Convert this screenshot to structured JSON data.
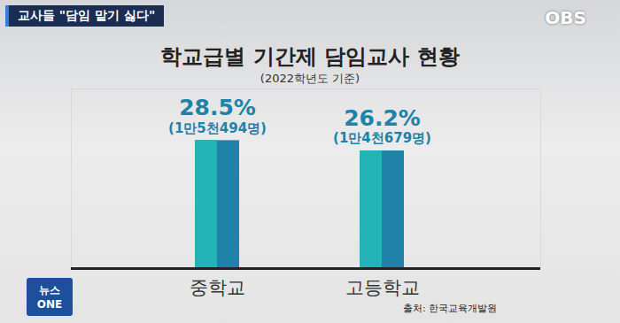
{
  "chart_data": {
    "type": "bar",
    "title": "학교급별 기간제 담임교사 현황",
    "subtitle": "(2022학년도 기준)",
    "categories": [
      "중학교",
      "고등학교"
    ],
    "values": [
      28.5,
      26.2
    ],
    "value_labels": [
      "28.5%",
      "26.2%"
    ],
    "count_labels": [
      "(1만5천494명)",
      "(1만4천679명)"
    ],
    "color": "#1f82a8",
    "ylim": [
      0,
      40
    ],
    "yticks": [],
    "grid": false,
    "data_labels": true,
    "tick_labels": "x",
    "annotations": [
      "교사들 \"담임 맡기 싫다\"",
      "OBS",
      "뉴스ONE",
      "출처: 한국교육개발원"
    ]
  }
}
